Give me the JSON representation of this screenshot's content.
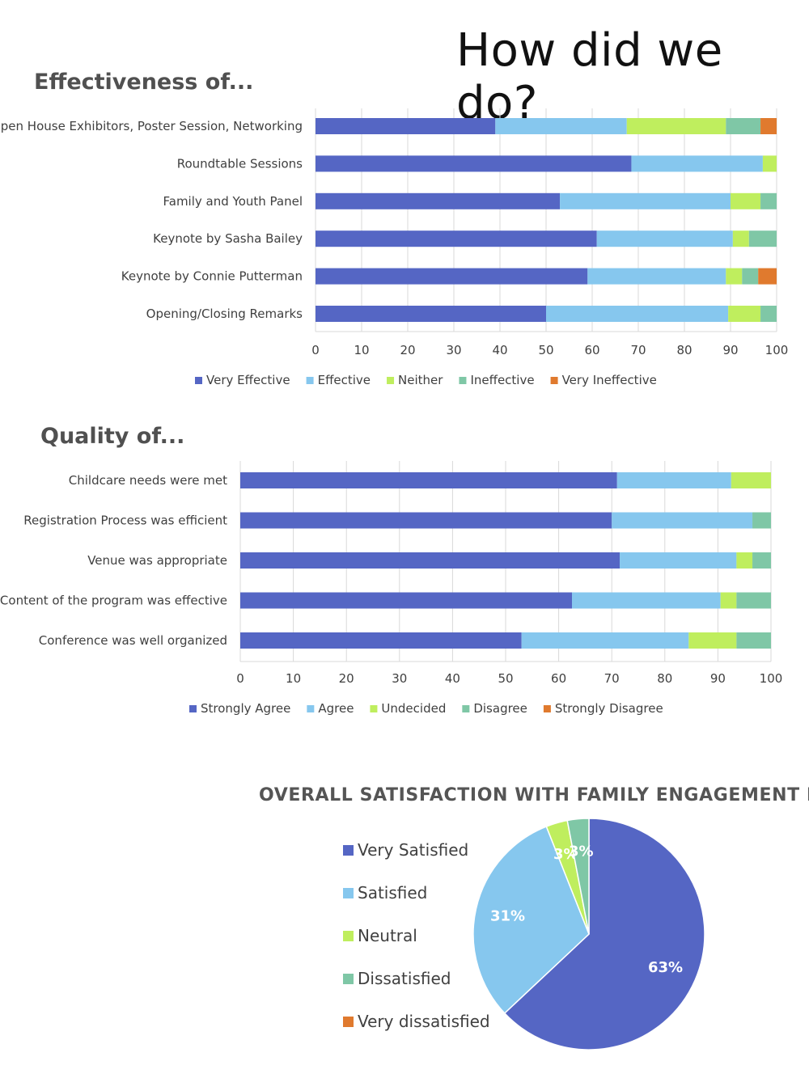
{
  "page": {
    "title": "How did we do?"
  },
  "chart_data": [
    {
      "type": "bar",
      "stacked": true,
      "orientation": "horizontal",
      "title": "Effectiveness of...",
      "categories": [
        "Open House Exhibitors, Poster Session, Networking",
        "Roundtable Sessions",
        "Family and Youth Panel",
        "Keynote by Sasha Bailey",
        "Keynote by Connie Putterman",
        "Opening/Closing Remarks"
      ],
      "series": [
        {
          "name": "Very Effective",
          "color": "#5566c4",
          "values": [
            39,
            68.5,
            53,
            61,
            59,
            50
          ]
        },
        {
          "name": "Effective",
          "color": "#86c7ee",
          "values": [
            28.5,
            28.5,
            37,
            29.5,
            30,
            39.5
          ]
        },
        {
          "name": "Neither",
          "color": "#bfee5e",
          "values": [
            21.5,
            3,
            6.5,
            3.5,
            3.5,
            7
          ]
        },
        {
          "name": "Ineffective",
          "color": "#7fc7a6",
          "values": [
            7.5,
            0,
            3.5,
            6,
            3.5,
            3.5
          ]
        },
        {
          "name": "Very Ineffective",
          "color": "#e07a2e",
          "values": [
            3.5,
            0,
            0,
            0,
            4,
            0
          ]
        }
      ],
      "xlim": [
        0,
        100
      ],
      "xticks": [
        "0",
        "10",
        "20",
        "30",
        "40",
        "50",
        "60",
        "70",
        "80",
        "90",
        "100"
      ],
      "grid": true,
      "legend": "bottom"
    },
    {
      "type": "bar",
      "stacked": true,
      "orientation": "horizontal",
      "title": "Quality of...",
      "categories": [
        "Childcare needs were met",
        "Registration Process was efficient",
        "Venue was appropriate",
        "Content of the program was effective",
        "Conference was well organized"
      ],
      "series": [
        {
          "name": "Strongly Agree",
          "color": "#5566c4",
          "values": [
            71,
            70,
            71.5,
            62.5,
            53
          ]
        },
        {
          "name": "Agree",
          "color": "#86c7ee",
          "values": [
            21.5,
            26.5,
            22,
            28,
            31.5
          ]
        },
        {
          "name": "Undecided",
          "color": "#bfee5e",
          "values": [
            7.5,
            0,
            3,
            3,
            9
          ]
        },
        {
          "name": "Disagree",
          "color": "#7fc7a6",
          "values": [
            0,
            3.5,
            3.5,
            6.5,
            6.5
          ]
        },
        {
          "name": "Strongly Disagree",
          "color": "#e07a2e",
          "values": [
            0,
            0,
            0,
            0,
            0
          ]
        }
      ],
      "xlim": [
        0,
        100
      ],
      "xticks": [
        "0",
        "10",
        "20",
        "30",
        "40",
        "50",
        "60",
        "70",
        "80",
        "90",
        "100"
      ],
      "grid": true,
      "legend": "bottom"
    },
    {
      "type": "pie",
      "title": "OVERALL SATISFACTION WITH FAMILY ENGAGEMENT DAY",
      "categories": [
        "Very Satisfied",
        "Satisfied",
        "Neutral",
        "Dissatisfied",
        "Very dissatisfied"
      ],
      "values": [
        63,
        31,
        3,
        3,
        0
      ],
      "data_labels": [
        "63%",
        "31%",
        "3%",
        "3%",
        ""
      ],
      "colors": [
        "#5566c4",
        "#86c7ee",
        "#bfee5e",
        "#7fc7a6",
        "#e07a2e"
      ],
      "legend": "left"
    }
  ]
}
